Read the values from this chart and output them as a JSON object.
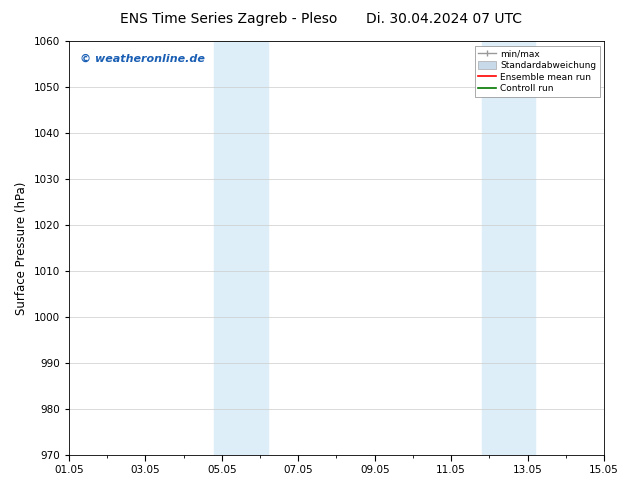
{
  "title_left": "ENS Time Series Zagreb - Pleso",
  "title_right": "Di. 30.04.2024 07 UTC",
  "ylabel": "Surface Pressure (hPa)",
  "ylim": [
    970,
    1060
  ],
  "yticks": [
    970,
    980,
    990,
    1000,
    1010,
    1020,
    1030,
    1040,
    1050,
    1060
  ],
  "xlim_start": 0,
  "xlim_end": 14,
  "xtick_labels": [
    "01.05",
    "03.05",
    "05.05",
    "07.05",
    "09.05",
    "11.05",
    "13.05",
    "15.05"
  ],
  "xtick_positions": [
    0,
    2,
    4,
    6,
    8,
    10,
    12,
    14
  ],
  "shaded_bands": [
    {
      "x_start": 3.8,
      "x_end": 5.2
    },
    {
      "x_start": 10.8,
      "x_end": 12.2
    }
  ],
  "shaded_color": "#ddeef9",
  "watermark": "© weatheronline.de",
  "watermark_color": "#1a5fb4",
  "legend_entries": [
    {
      "label": "min/max",
      "color": "#aaaaaa"
    },
    {
      "label": "Standardabweichung",
      "color": "#c8daea"
    },
    {
      "label": "Ensemble mean run",
      "color": "#ff0000"
    },
    {
      "label": "Controll run",
      "color": "#007700"
    }
  ],
  "background_color": "#ffffff",
  "grid_color": "#cccccc",
  "title_fontsize": 10,
  "tick_fontsize": 7.5,
  "ylabel_fontsize": 8.5,
  "watermark_fontsize": 8
}
